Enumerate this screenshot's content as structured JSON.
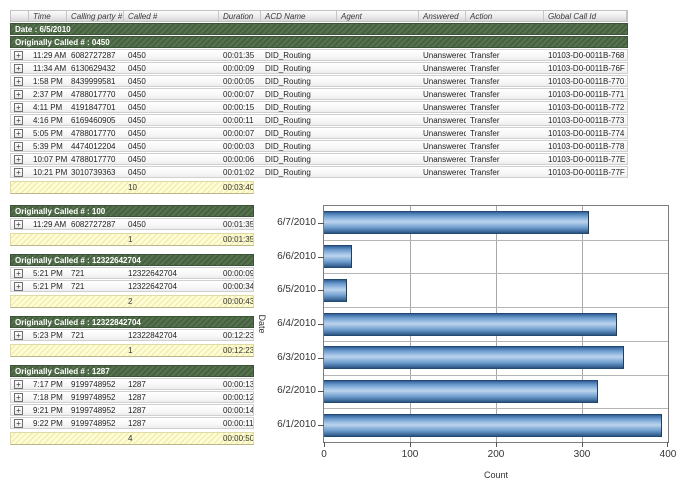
{
  "icons": {
    "expand": "+"
  },
  "colors": {
    "group_header_green": "#4e6a49",
    "summary_yellow": "#fdf6c0",
    "bar_blue": "#6f9ecf",
    "grid_line": "#a8a8a8"
  },
  "report": {
    "date_header": "Date : 6/5/2010",
    "columns": [
      "Time",
      "Calling party #",
      "Called #",
      "Duration",
      "ACD Name",
      "Agent",
      "Answered",
      "Action",
      "Global Call Id"
    ],
    "groups": [
      {
        "label": "Originally Called # : 0450",
        "rows": [
          {
            "time": "11:29 AM",
            "calling": "6082727287",
            "called": "0450",
            "duration": "00:01:35",
            "acd": "DID_Routing",
            "agent": "",
            "answered": "Unanswered",
            "action": "Transfer",
            "global_id": "10103-D0-0011B-768"
          },
          {
            "time": "11:34 AM",
            "calling": "6130629432",
            "called": "0450",
            "duration": "00:00:09",
            "acd": "DID_Routing",
            "agent": "",
            "answered": "Unanswered",
            "action": "Transfer",
            "global_id": "10103-D0-0011B-76F"
          },
          {
            "time": "1:58 PM",
            "calling": "8439999581",
            "called": "0450",
            "duration": "00:00:05",
            "acd": "DID_Routing",
            "agent": "",
            "answered": "Unanswered",
            "action": "Transfer",
            "global_id": "10103-D0-0011B-770"
          },
          {
            "time": "2:37 PM",
            "calling": "4788017770",
            "called": "0450",
            "duration": "00:00:07",
            "acd": "DID_Routing",
            "agent": "",
            "answered": "Unanswered",
            "action": "Transfer",
            "global_id": "10103-D0-0011B-771"
          },
          {
            "time": "4:11 PM",
            "calling": "4191847701",
            "called": "0450",
            "duration": "00:00:15",
            "acd": "DID_Routing",
            "agent": "",
            "answered": "Unanswered",
            "action": "Transfer",
            "global_id": "10103-D0-0011B-772"
          },
          {
            "time": "4:16 PM",
            "calling": "6169460905",
            "called": "0450",
            "duration": "00:00:11",
            "acd": "DID_Routing",
            "agent": "",
            "answered": "Unanswered",
            "action": "Transfer",
            "global_id": "10103-D0-0011B-773"
          },
          {
            "time": "5:05 PM",
            "calling": "4788017770",
            "called": "0450",
            "duration": "00:00:07",
            "acd": "DID_Routing",
            "agent": "",
            "answered": "Unanswered",
            "action": "Transfer",
            "global_id": "10103-D0-0011B-774"
          },
          {
            "time": "5:39 PM",
            "calling": "4474012204",
            "called": "0450",
            "duration": "00:00:03",
            "acd": "DID_Routing",
            "agent": "",
            "answered": "Unanswered",
            "action": "Transfer",
            "global_id": "10103-D0-0011B-778"
          },
          {
            "time": "10:07 PM",
            "calling": "4788017770",
            "called": "0450",
            "duration": "00:00:06",
            "acd": "DID_Routing",
            "agent": "",
            "answered": "Unanswered",
            "action": "Transfer",
            "global_id": "10103-D0-0011B-77E"
          },
          {
            "time": "10:21 PM",
            "calling": "3010739363",
            "called": "0450",
            "duration": "00:01:02",
            "acd": "DID_Routing",
            "agent": "",
            "answered": "Unanswered",
            "action": "Transfer",
            "global_id": "10103-D0-0011B-77F"
          }
        ],
        "summary": {
          "count": "10",
          "total_duration": "00:03:40"
        }
      },
      {
        "label": "Originally Called # : 100",
        "rows": [
          {
            "time": "11:29 AM",
            "calling": "6082727287",
            "called": "0450",
            "duration": "00:01:35"
          }
        ],
        "summary": {
          "count": "1",
          "total_duration": "00:01:35"
        }
      },
      {
        "label": "Originally Called # : 12322642704",
        "rows": [
          {
            "time": "5:21 PM",
            "calling": "721",
            "called": "12322642704",
            "duration": "00:00:09"
          },
          {
            "time": "5:21 PM",
            "calling": "721",
            "called": "12322642704",
            "duration": "00:00:34"
          }
        ],
        "summary": {
          "count": "2",
          "total_duration": "00:00:43"
        }
      },
      {
        "label": "Originally Called # : 12322842704",
        "rows": [
          {
            "time": "5:23 PM",
            "calling": "721",
            "called": "12322842704",
            "duration": "00:12:23"
          }
        ],
        "summary": {
          "count": "1",
          "total_duration": "00:12:23"
        }
      },
      {
        "label": "Originally Called # : 1287",
        "rows": [
          {
            "time": "7:17 PM",
            "calling": "9199748952",
            "called": "1287",
            "duration": "00:00:13"
          },
          {
            "time": "7:18 PM",
            "calling": "9199748952",
            "called": "1287",
            "duration": "00:00:12"
          },
          {
            "time": "9:21 PM",
            "calling": "9199748952",
            "called": "1287",
            "duration": "00:00:14"
          },
          {
            "time": "9:22 PM",
            "calling": "9199748952",
            "called": "1287",
            "duration": "00:00:11"
          }
        ],
        "summary": {
          "count": "4",
          "total_duration": "00:00:50"
        }
      }
    ]
  },
  "chart_data": {
    "type": "bar",
    "orientation": "horizontal",
    "title": "",
    "categories": [
      "6/7/2010",
      "6/6/2010",
      "6/5/2010",
      "6/4/2010",
      "6/3/2010",
      "6/2/2010",
      "6/1/2010"
    ],
    "values": [
      307,
      31,
      25,
      340,
      348,
      318,
      392
    ],
    "xlabel": "Count",
    "ylabel": "Date",
    "xlim": [
      0,
      400
    ],
    "x_ticks": [
      0,
      100,
      200,
      300,
      400
    ],
    "grid": true,
    "legend": false
  }
}
